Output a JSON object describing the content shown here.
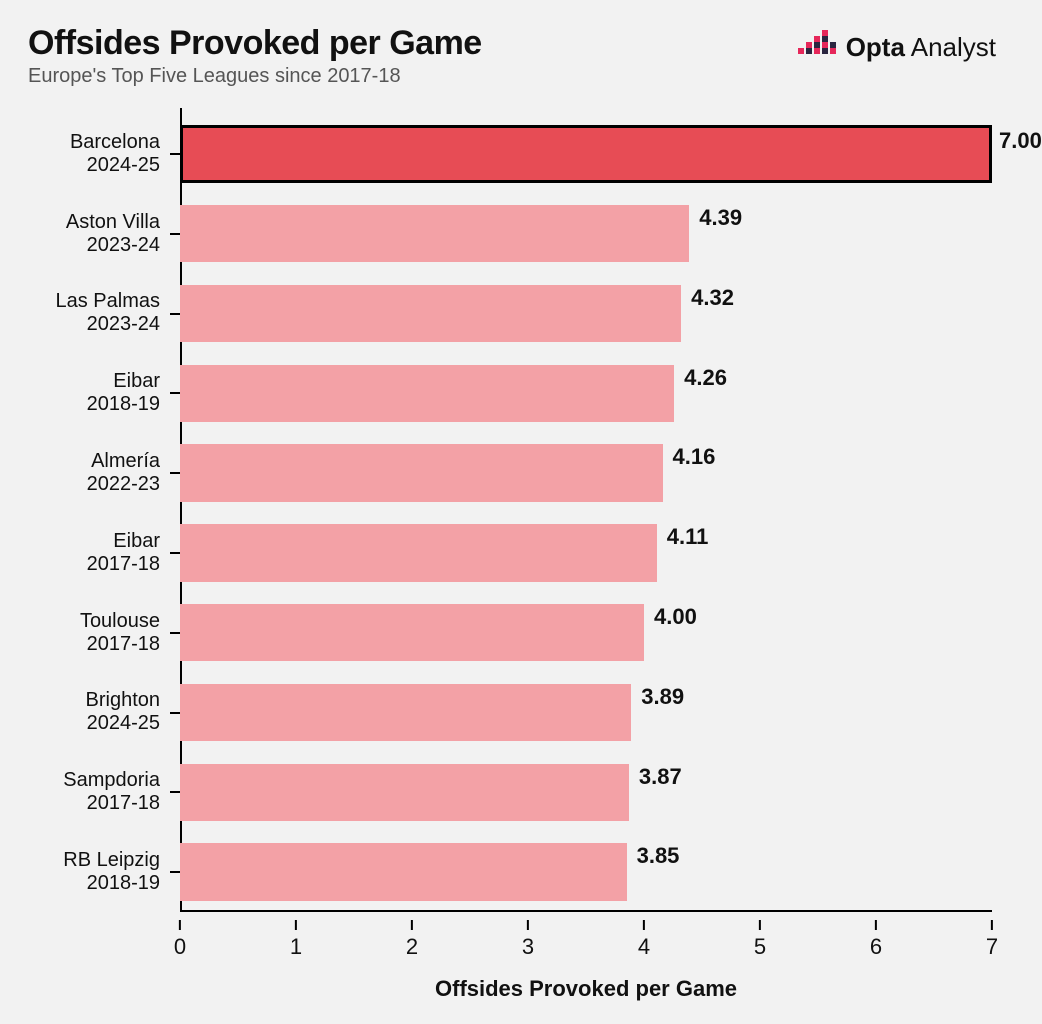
{
  "header": {
    "title": "Offsides Provoked per Game",
    "subtitle": "Europe's Top Five Leagues since 2017-18",
    "logo_text_bold": "Opta",
    "logo_text_light": " Analyst"
  },
  "chart": {
    "type": "bar-horizontal",
    "x_axis_title": "Offsides Provoked per Game",
    "xlim": [
      0,
      7
    ],
    "xtick_step": 1,
    "x_ticks": [
      "0",
      "1",
      "2",
      "3",
      "4",
      "5",
      "6",
      "7"
    ],
    "background_color": "#f2f2f2",
    "axis_color": "#000000",
    "title_fontsize": 34,
    "subtitle_fontsize": 20,
    "label_fontsize": 20,
    "value_fontsize": 22,
    "xaxis_label_fontsize": 22,
    "bar_height_ratio": 0.72,
    "rows": [
      {
        "team": "Barcelona",
        "season": "2024-25",
        "value": 7.0,
        "value_label": "7.00",
        "color": "#e74c55",
        "highlight": true,
        "border": "#000000"
      },
      {
        "team": "Aston Villa",
        "season": "2023-24",
        "value": 4.39,
        "value_label": "4.39",
        "color": "#f3a1a6",
        "highlight": false
      },
      {
        "team": "Las Palmas",
        "season": "2023-24",
        "value": 4.32,
        "value_label": "4.32",
        "color": "#f3a1a6",
        "highlight": false
      },
      {
        "team": "Eibar",
        "season": "2018-19",
        "value": 4.26,
        "value_label": "4.26",
        "color": "#f3a1a6",
        "highlight": false
      },
      {
        "team": "Almería",
        "season": "2022-23",
        "value": 4.16,
        "value_label": "4.16",
        "color": "#f3a1a6",
        "highlight": false
      },
      {
        "team": "Eibar",
        "season": "2017-18",
        "value": 4.11,
        "value_label": "4.11",
        "color": "#f3a1a6",
        "highlight": false
      },
      {
        "team": "Toulouse",
        "season": "2017-18",
        "value": 4.0,
        "value_label": "4.00",
        "color": "#f3a1a6",
        "highlight": false
      },
      {
        "team": "Brighton",
        "season": "2024-25",
        "value": 3.89,
        "value_label": "3.89",
        "color": "#f3a1a6",
        "highlight": false
      },
      {
        "team": "Sampdoria",
        "season": "2017-18",
        "value": 3.87,
        "value_label": "3.87",
        "color": "#f3a1a6",
        "highlight": false
      },
      {
        "team": "RB Leipzig",
        "season": "2018-19",
        "value": 3.85,
        "value_label": "3.85",
        "color": "#f3a1a6",
        "highlight": false
      }
    ],
    "logo_colors": {
      "primary": "#e6275a",
      "secondary": "#2a2540"
    }
  }
}
